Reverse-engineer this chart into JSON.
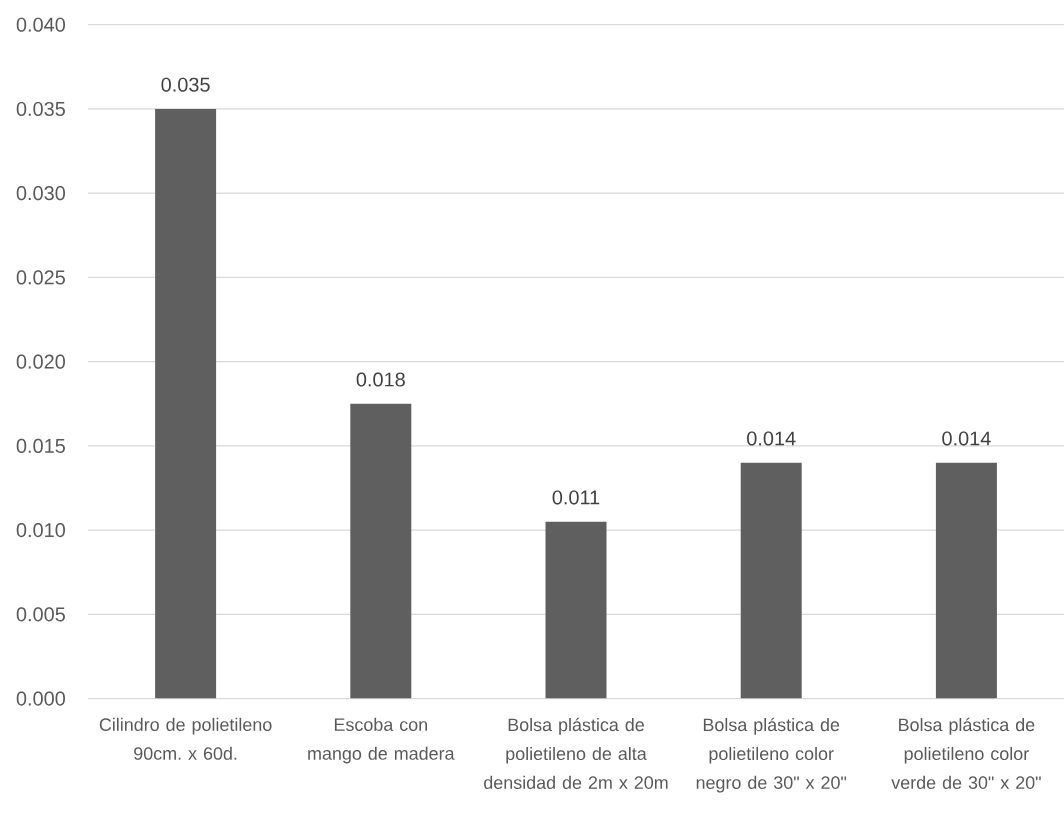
{
  "chart_data": {
    "type": "bar",
    "categories": [
      "Cilindro de polietileno 90cm. x 60d.",
      "Escoba con mango de madera",
      "Bolsa plástica de polietileno de alta densidad de 2m x 20m",
      "Bolsa plástica de polietileno color negro de 30\" x 20\"",
      "Bolsa plástica de polietileno color verde de 30\" x 20\""
    ],
    "values": [
      0.035,
      0.0175,
      0.0105,
      0.014,
      0.014
    ],
    "value_labels": [
      "0.035",
      "0.018",
      "0.011",
      "0.014",
      "0.014"
    ],
    "color": "#5f5f5f",
    "ylim": [
      0,
      0.04
    ],
    "yticks": [
      {
        "value": 0,
        "label": "0.000"
      },
      {
        "value": 0.005,
        "label": "0.005"
      },
      {
        "value": 0.01,
        "label": "0.010"
      },
      {
        "value": 0.015,
        "label": "0.015"
      },
      {
        "value": 0.02,
        "label": "0.020"
      },
      {
        "value": 0.025,
        "label": "0.025"
      },
      {
        "value": 0.03,
        "label": "0.030"
      },
      {
        "value": 0.035,
        "label": "0.035"
      },
      {
        "value": 0.04,
        "label": "0.040"
      }
    ],
    "grid": "y"
  }
}
